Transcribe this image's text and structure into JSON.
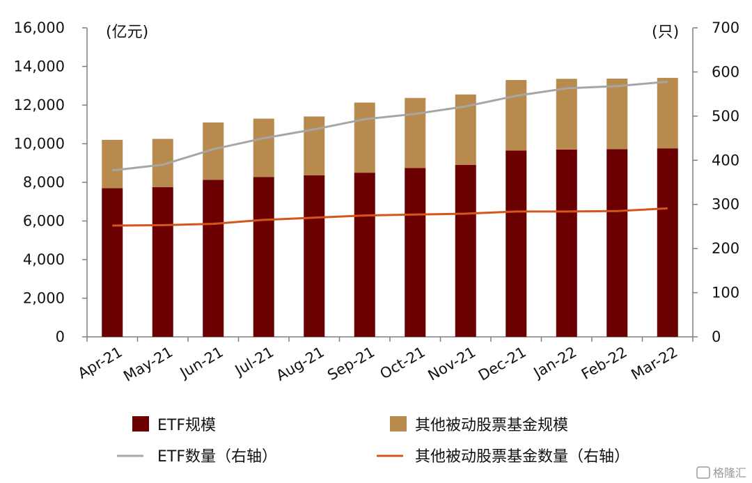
{
  "chart_data": {
    "type": "bar",
    "stacked": true,
    "categories": [
      "Apr-21",
      "May-21",
      "Jun-21",
      "Jul-21",
      "Aug-21",
      "Sep-21",
      "Oct-21",
      "Nov-21",
      "Dec-21",
      "Jan-22",
      "Feb-22",
      "Mar-22"
    ],
    "left_axis": {
      "unit": "(亿元)",
      "ylim": [
        0,
        16000
      ],
      "ticks": [
        "0",
        "2,000",
        "4,000",
        "6,000",
        "8,000",
        "10,000",
        "12,000",
        "14,000",
        "16,000"
      ]
    },
    "right_axis": {
      "unit": "(只)",
      "ylim": [
        0,
        700
      ],
      "ticks": [
        "0",
        "100",
        "200",
        "300",
        "400",
        "500",
        "600",
        "700"
      ]
    },
    "series": [
      {
        "name": "ETF规模",
        "type": "bar",
        "axis": "left",
        "color": "#6b0000",
        "values": [
          7700,
          7750,
          8130,
          8280,
          8360,
          8500,
          8740,
          8900,
          9650,
          9700,
          9720,
          9760
        ]
      },
      {
        "name": "其他被动股票基金规模",
        "type": "bar",
        "axis": "left",
        "color": "#b98a4e",
        "values": [
          2500,
          2500,
          2970,
          3020,
          3050,
          3630,
          3630,
          3650,
          3650,
          3660,
          3650,
          3650
        ]
      },
      {
        "name": "ETF数量（右轴）",
        "type": "line",
        "axis": "right",
        "color": "#a6a6a6",
        "values": [
          377,
          390,
          425,
          450,
          470,
          493,
          505,
          522,
          546,
          563,
          568,
          578
        ]
      },
      {
        "name": "其他被动股票基金数量（右轴）",
        "type": "line",
        "axis": "right",
        "color": "#d4561c",
        "values": [
          252,
          253,
          256,
          265,
          270,
          275,
          277,
          279,
          284,
          284,
          285,
          291
        ]
      }
    ],
    "grid": false,
    "legend": "bottom"
  },
  "watermark": {
    "text": "格隆汇"
  }
}
